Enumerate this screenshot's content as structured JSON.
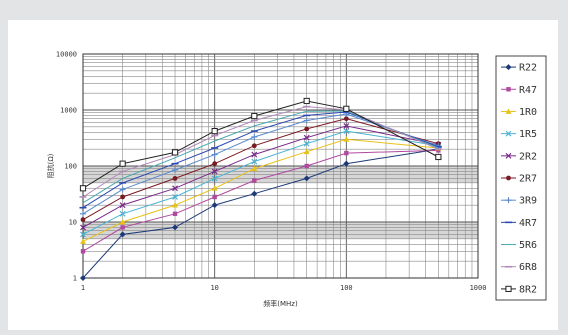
{
  "chart_data": {
    "type": "line",
    "title": "",
    "xlabel": "频率(MHz)",
    "ylabel": "阻抗(Ω)",
    "x_scale": "log",
    "y_scale": "log",
    "xlim": [
      1,
      1000
    ],
    "ylim": [
      1,
      10000
    ],
    "x_ticks": [
      "1",
      "10",
      "100",
      "1000"
    ],
    "y_ticks": [
      "1",
      "10",
      "100",
      "1000",
      "10000"
    ],
    "grid": true,
    "legend_position": "right",
    "x": [
      1,
      2,
      5,
      10,
      20,
      50,
      100,
      500
    ],
    "series": [
      {
        "name": "R22",
        "color": "#1c3a78",
        "marker": "diamond",
        "values": [
          1,
          6,
          8,
          20,
          32,
          60,
          110,
          200
        ]
      },
      {
        "name": "R47",
        "color": "#b04aa0",
        "marker": "square",
        "values": [
          3,
          8,
          14,
          28,
          55,
          100,
          170,
          190
        ]
      },
      {
        "name": "1R0",
        "color": "#e8c21a",
        "marker": "triangle",
        "values": [
          4.5,
          10,
          20,
          40,
          90,
          180,
          300,
          210
        ]
      },
      {
        "name": "1R5",
        "color": "#4ab4d4",
        "marker": "x",
        "values": [
          6,
          14,
          28,
          60,
          120,
          250,
          420,
          230
        ]
      },
      {
        "name": "2R2",
        "color": "#7a2a8a",
        "marker": "x",
        "values": [
          8,
          20,
          40,
          80,
          160,
          320,
          520,
          240
        ]
      },
      {
        "name": "2R7",
        "color": "#7a1a22",
        "marker": "circle",
        "values": [
          11,
          28,
          60,
          110,
          230,
          460,
          700,
          250
        ]
      },
      {
        "name": "3R9",
        "color": "#5a8ad0",
        "marker": "plus",
        "values": [
          14,
          38,
          85,
          160,
          330,
          650,
          850,
          230
        ]
      },
      {
        "name": "4R7",
        "color": "#2a4ab4",
        "marker": "dash",
        "values": [
          18,
          50,
          110,
          210,
          420,
          800,
          920,
          220
        ]
      },
      {
        "name": "5R6",
        "color": "#4aa8b0",
        "marker": "none",
        "values": [
          22,
          60,
          140,
          280,
          520,
          950,
          960,
          210
        ]
      },
      {
        "name": "6R8",
        "color": "#b08ab8",
        "marker": "dash",
        "values": [
          28,
          80,
          160,
          350,
          650,
          1150,
          1000,
          200
        ]
      },
      {
        "name": "8R2",
        "color": "#222222",
        "marker": "open-square",
        "values": [
          40,
          110,
          175,
          420,
          780,
          1450,
          1050,
          145
        ]
      }
    ]
  }
}
